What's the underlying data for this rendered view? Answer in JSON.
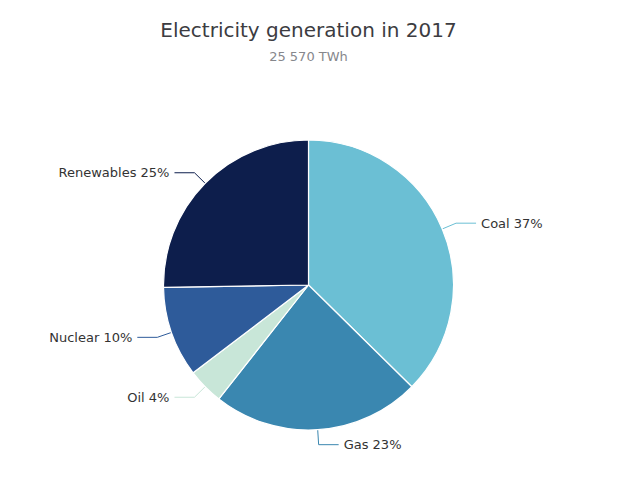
{
  "chart_data": {
    "type": "pie",
    "title": "Electricity generation in 2017",
    "subtitle": "25 570 TWh",
    "categories": [
      "Coal 37%",
      "Gas 23%",
      "Oil 4%",
      "Nuclear 10%",
      "Renewables 25%"
    ],
    "values": [
      37,
      23,
      4,
      10,
      25
    ],
    "colors": [
      "#6BBFD4",
      "#3A87B0",
      "#C8E6D8",
      "#2E5B9A",
      "#0D1E4C"
    ]
  }
}
